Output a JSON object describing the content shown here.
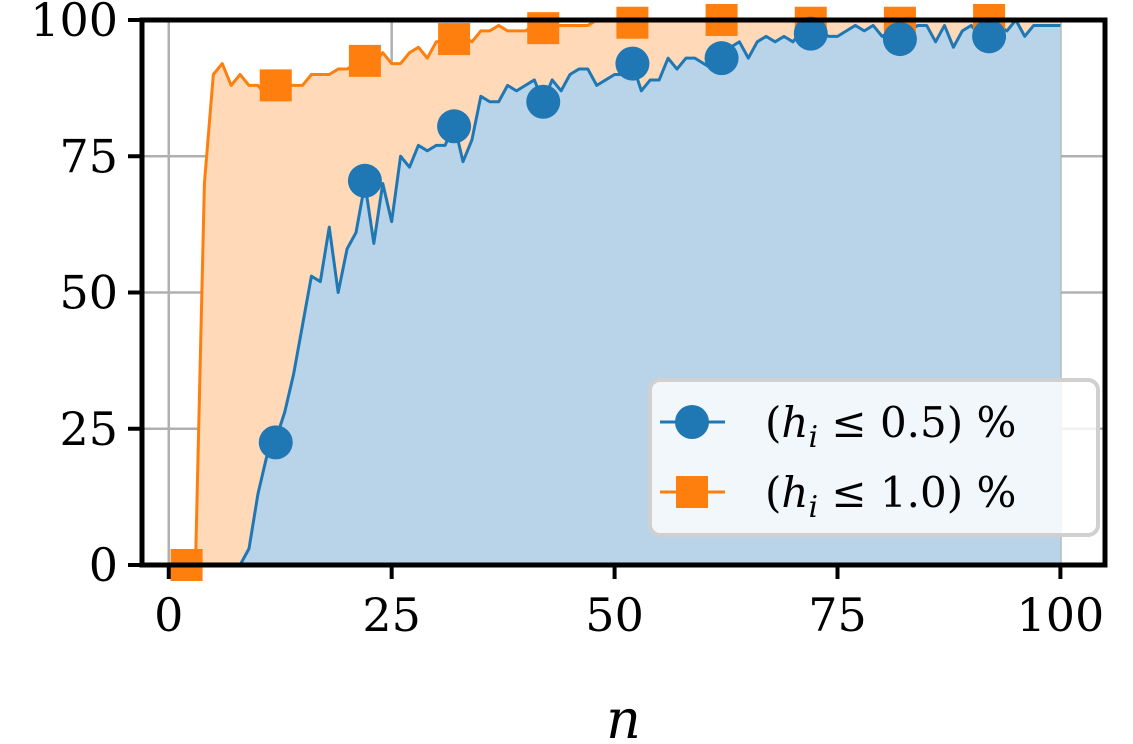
{
  "chart_data": {
    "type": "area",
    "xlabel": "n",
    "ylabel": "",
    "xlim": [
      -3,
      105
    ],
    "ylim": [
      0,
      100
    ],
    "x_ticks": [
      "0",
      "25",
      "50",
      "75",
      "100"
    ],
    "y_ticks": [
      "0",
      "25",
      "50",
      "75",
      "100"
    ],
    "grid": true,
    "legend_position": "lower-right",
    "series": [
      {
        "name": "(h_i ≤ 0.5) %",
        "legend_math": {
          "open": "(",
          "var": "h",
          "sub": "i",
          "rel": " ≤ 0.5) %"
        },
        "color": "#1f77b4",
        "fill": "#b9d4e8",
        "marker": "circle",
        "x": [
          2,
          3,
          4,
          5,
          6,
          7,
          8,
          9,
          10,
          11,
          12,
          13,
          14,
          15,
          16,
          17,
          18,
          19,
          20,
          21,
          22,
          23,
          24,
          25,
          26,
          27,
          28,
          29,
          30,
          31,
          32,
          33,
          34,
          35,
          36,
          37,
          38,
          39,
          40,
          41,
          42,
          43,
          44,
          45,
          46,
          47,
          48,
          49,
          50,
          51,
          52,
          53,
          54,
          55,
          56,
          57,
          58,
          59,
          60,
          61,
          62,
          63,
          64,
          65,
          66,
          67,
          68,
          69,
          70,
          71,
          72,
          73,
          74,
          75,
          76,
          77,
          78,
          79,
          80,
          81,
          82,
          83,
          84,
          85,
          86,
          87,
          88,
          89,
          90,
          91,
          92,
          93,
          94,
          95,
          96,
          97,
          98,
          99,
          100
        ],
        "y": [
          0,
          0,
          0,
          0,
          0,
          0,
          0,
          3,
          13,
          20,
          23,
          28,
          35,
          44,
          53,
          52,
          62,
          50,
          58,
          61,
          70,
          59,
          70,
          63,
          75,
          73,
          77,
          76,
          77,
          77,
          81,
          74,
          78,
          86,
          85,
          85,
          88,
          87,
          88,
          89,
          85,
          89,
          87,
          90,
          91,
          91,
          88,
          89,
          90,
          90,
          92,
          87,
          89,
          89,
          93,
          91,
          93,
          93,
          92,
          91,
          93,
          95,
          96,
          93,
          96,
          97,
          96,
          97,
          96,
          98,
          98,
          98,
          97,
          97,
          98,
          99,
          98,
          99,
          97,
          98,
          97,
          98,
          99,
          99,
          96,
          99,
          95,
          98,
          99,
          97,
          97,
          99,
          98,
          100,
          97,
          99,
          99,
          99,
          99
        ],
        "markers_x": [
          12,
          22,
          32,
          42,
          52,
          62,
          72,
          82,
          92
        ],
        "markers_y": [
          22.5,
          70.5,
          80.5,
          85,
          92,
          93,
          97.5,
          96.5,
          97
        ]
      },
      {
        "name": "(h_i ≤ 1.0) %",
        "legend_math": {
          "open": "(",
          "var": "h",
          "sub": "i",
          "rel": " ≤ 1.0) %"
        },
        "color": "#ff7f0e",
        "fill": "#ffd9b8",
        "marker": "square",
        "x": [
          2,
          3,
          4,
          5,
          6,
          7,
          8,
          9,
          10,
          11,
          12,
          13,
          14,
          15,
          16,
          17,
          18,
          19,
          20,
          21,
          22,
          23,
          24,
          25,
          26,
          27,
          28,
          29,
          30,
          31,
          32,
          33,
          34,
          35,
          36,
          37,
          38,
          39,
          40,
          41,
          42,
          43,
          44,
          45,
          46,
          47,
          48,
          49,
          50,
          51,
          52,
          53,
          54,
          55,
          56,
          57,
          58,
          59,
          60,
          61,
          62,
          63,
          64,
          65,
          66,
          67,
          68,
          69,
          70,
          71,
          72,
          73,
          74,
          75,
          76,
          77,
          78,
          79,
          80,
          81,
          82,
          83,
          84,
          85,
          86,
          87,
          88,
          89,
          90,
          91,
          92,
          93,
          94,
          95,
          96,
          97,
          98,
          99,
          100
        ],
        "y": [
          0,
          0,
          70,
          90,
          92,
          88,
          90,
          88,
          88,
          86,
          87,
          88,
          88,
          88,
          90,
          90,
          90,
          91,
          91,
          92,
          92,
          92,
          94,
          92,
          92,
          94,
          95,
          93,
          96,
          96,
          97,
          97,
          96,
          98,
          98,
          99,
          98,
          98,
          98,
          99,
          99,
          99,
          99,
          99,
          99,
          99,
          100,
          100,
          100,
          100,
          100,
          100,
          100,
          100,
          100,
          100,
          100,
          100,
          100,
          100,
          100,
          100,
          100,
          100,
          100,
          100,
          100,
          100,
          100,
          100,
          100,
          100,
          100,
          100,
          100,
          100,
          100,
          100,
          100,
          100,
          100,
          100,
          100,
          100,
          100,
          100,
          100,
          100,
          100,
          100,
          100,
          100,
          100,
          100,
          100,
          100,
          100,
          100,
          100
        ],
        "markers_x": [
          2,
          12,
          22,
          32,
          42,
          52,
          62,
          72,
          82,
          92
        ],
        "markers_y": [
          0,
          88,
          92.5,
          96.5,
          98.5,
          99.5,
          100,
          99.5,
          99.5,
          100
        ]
      }
    ]
  }
}
